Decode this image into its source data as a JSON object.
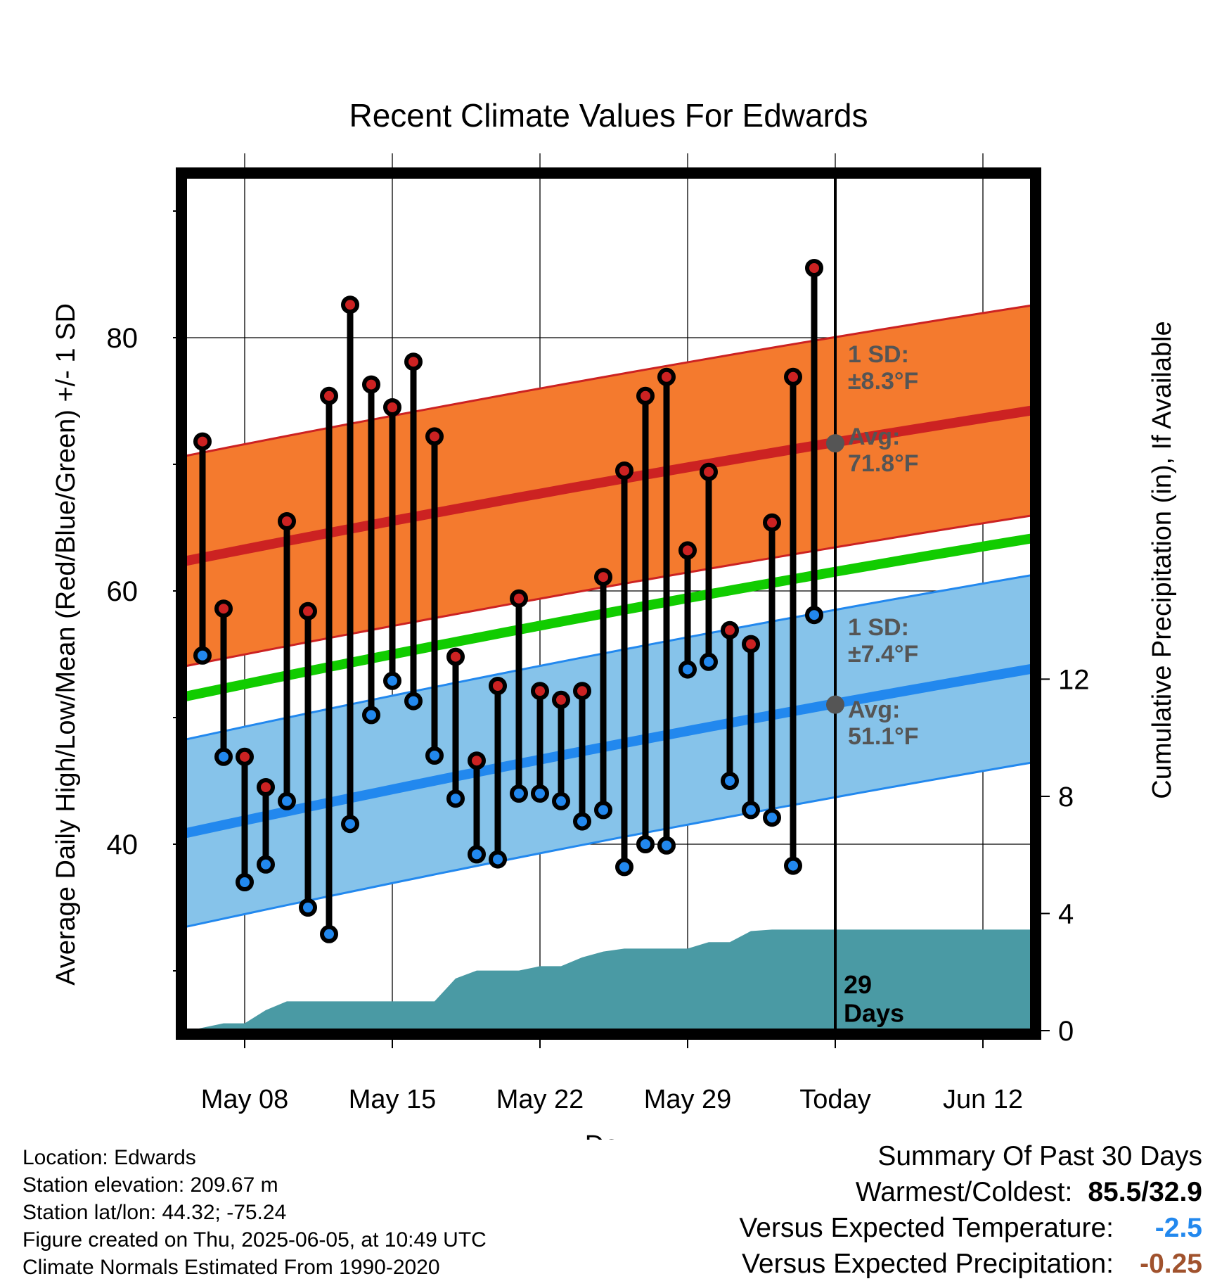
{
  "chart_data": {
    "type": "line",
    "title": "Recent Climate Values For Edwards",
    "xlabel": "Day",
    "ylabel_left": "Average Daily High/Low/Mean (Red/Blue/Green) +/- 1 SD",
    "ylabel_right": "Cumulative Precipitation (in), If Available",
    "x_tick_labels": [
      "May 08",
      "May 15",
      "May 22",
      "May 29",
      "Today",
      "Jun 12"
    ],
    "x_tick_days": [
      3,
      10,
      17,
      24,
      31,
      38
    ],
    "x_range_days": [
      0,
      40.5
    ],
    "ylim": [
      25,
      93
    ],
    "y_ticks": [
      40,
      60,
      80
    ],
    "y_ticks_right": [
      0,
      4,
      8,
      12
    ],
    "precip_lim": [
      0,
      29.4
    ],
    "today_day": 31,
    "today_label": "29\nDays",
    "days": [
      1,
      2,
      3,
      4,
      5,
      6,
      7,
      8,
      9,
      10,
      11,
      12,
      13,
      14,
      15,
      16,
      17,
      18,
      19,
      20,
      21,
      22,
      23,
      24,
      25,
      26,
      27,
      28,
      29,
      30
    ],
    "series": [
      {
        "name": "High",
        "color": "#cc2222",
        "values": [
          71.8,
          58.6,
          46.9,
          44.5,
          65.5,
          58.4,
          75.4,
          82.6,
          76.3,
          74.5,
          78.1,
          72.2,
          54.8,
          46.6,
          52.5,
          59.4,
          52.1,
          51.4,
          52.1,
          61.1,
          69.5,
          75.4,
          76.9,
          63.2,
          69.4,
          56.9,
          55.8,
          65.4,
          76.9,
          85.5
        ]
      },
      {
        "name": "Low",
        "color": "#2288ee",
        "values": [
          54.9,
          46.9,
          37.0,
          38.4,
          43.4,
          35.0,
          32.9,
          41.6,
          50.2,
          52.9,
          51.3,
          47.0,
          43.6,
          39.2,
          38.8,
          44.0,
          44.0,
          43.4,
          41.8,
          42.7,
          38.2,
          40.0,
          39.9,
          53.8,
          54.4,
          45.0,
          42.7,
          42.1,
          38.3,
          58.1
        ]
      }
    ],
    "normal_high": {
      "start": 62.3,
      "end": 74.3,
      "sd": 8.3
    },
    "normal_low": {
      "start": 40.8,
      "end": 53.9,
      "sd": 7.4
    },
    "normal_mean": {
      "start": 51.6,
      "end": 64.2
    },
    "precip_cumulative": [
      [
        0,
        0.0
      ],
      [
        0.5,
        0.02
      ],
      [
        1,
        0.1
      ],
      [
        2,
        0.25
      ],
      [
        3,
        0.25
      ],
      [
        4,
        0.7
      ],
      [
        5,
        1.0
      ],
      [
        6,
        1.0
      ],
      [
        7,
        1.0
      ],
      [
        8,
        1.0
      ],
      [
        9,
        1.0
      ],
      [
        10,
        1.0
      ],
      [
        11,
        1.0
      ],
      [
        12,
        1.0
      ],
      [
        13,
        1.78
      ],
      [
        14,
        2.05
      ],
      [
        15,
        2.05
      ],
      [
        16,
        2.05
      ],
      [
        17,
        2.2
      ],
      [
        18,
        2.2
      ],
      [
        19,
        2.5
      ],
      [
        20,
        2.7
      ],
      [
        21,
        2.8
      ],
      [
        22,
        2.8
      ],
      [
        23,
        2.8
      ],
      [
        24,
        2.8
      ],
      [
        25,
        3.02
      ],
      [
        26,
        3.02
      ],
      [
        27,
        3.4
      ],
      [
        28,
        3.45
      ],
      [
        29,
        3.45
      ],
      [
        30,
        3.45
      ],
      [
        31,
        3.45
      ],
      [
        40.5,
        3.45
      ]
    ],
    "annotations": {
      "high_sd": "1 SD:\n±8.3°F",
      "high_avg": "Avg:\n71.8°F",
      "low_sd": "1 SD:\n±7.4°F",
      "low_avg": "Avg:\n51.1°F"
    },
    "colors": {
      "high_band": "#f47a2e",
      "high_line": "#cc2222",
      "low_band": "#86c3ea",
      "low_line": "#2288ee",
      "mean_line": "#11cc00",
      "precip": "#4a9aa4",
      "annotation": "#555555"
    }
  },
  "info": {
    "location": "Location: Edwards",
    "elevation": "Station elevation: 209.67 m",
    "latlon": "Station lat/lon: 44.32; -75.24",
    "created": "Figure created on Thu, 2025-06-05, at 10:49 UTC",
    "normals": "Climate Normals Estimated From 1990-2020"
  },
  "summary": {
    "title": "Summary Of Past 30 Days",
    "warmest_label": "Warmest/Coldest:",
    "warmest_value": "85.5/32.9",
    "temp_label": "Versus Expected Temperature:",
    "temp_value": "-2.5",
    "temp_color": "#2288ee",
    "precip_label": "Versus Expected Precipitation:",
    "precip_value": "-0.25",
    "precip_color": "#a0522d"
  }
}
